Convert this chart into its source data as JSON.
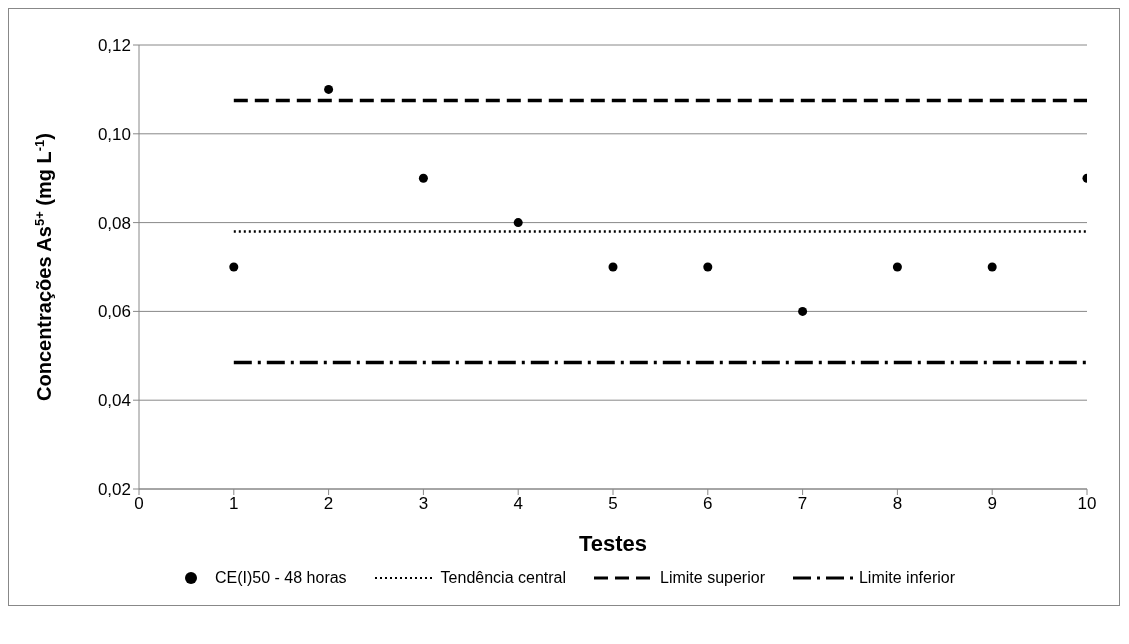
{
  "chart_data": {
    "type": "scatter",
    "xlabel": "Testes",
    "ylabel": "Concentrações As$^{5+}$ (mg L$^{-1}$)",
    "x": [
      1,
      2,
      3,
      4,
      5,
      6,
      7,
      8,
      9,
      10
    ],
    "series": [
      {
        "name": "CE(I)50 - 48 horas",
        "type": "scatter",
        "color": "#000000",
        "marker": "circle",
        "values": [
          0.07,
          0.11,
          0.09,
          0.08,
          0.07,
          0.07,
          0.06,
          0.07,
          0.07,
          0.09
        ]
      },
      {
        "name": "Tendência central",
        "type": "line",
        "color": "#000000",
        "line_style": "dotted",
        "marker": "none",
        "values": [
          0.078,
          0.078,
          0.078,
          0.078,
          0.078,
          0.078,
          0.078,
          0.078,
          0.078,
          0.078
        ]
      },
      {
        "name": "Limite superior",
        "type": "line",
        "color": "#000000",
        "line_style": "dashed",
        "marker": "none",
        "values": [
          0.1075,
          0.1075,
          0.1075,
          0.1075,
          0.1075,
          0.1075,
          0.1075,
          0.1075,
          0.1075,
          0.1075
        ]
      },
      {
        "name": "Limite inferior",
        "type": "line",
        "color": "#000000",
        "line_style": "dashdot",
        "marker": "none",
        "values": [
          0.0485,
          0.0485,
          0.0485,
          0.0485,
          0.0485,
          0.0485,
          0.0485,
          0.0485,
          0.0485,
          0.0485
        ]
      }
    ],
    "xlim": [
      0,
      10
    ],
    "xticks": [
      0,
      1,
      2,
      3,
      4,
      5,
      6,
      7,
      8,
      9,
      10
    ],
    "ylim": [
      0.02,
      0.12
    ],
    "yticks": [
      {
        "value": 0.02,
        "label": "0,02"
      },
      {
        "value": 0.04,
        "label": "0,04"
      },
      {
        "value": 0.06,
        "label": "0,06"
      },
      {
        "value": 0.08,
        "label": "0,08"
      },
      {
        "value": 0.1,
        "label": "0,10"
      },
      {
        "value": 0.12,
        "label": "0,12"
      }
    ],
    "grid": "y",
    "legend": "bottom"
  }
}
